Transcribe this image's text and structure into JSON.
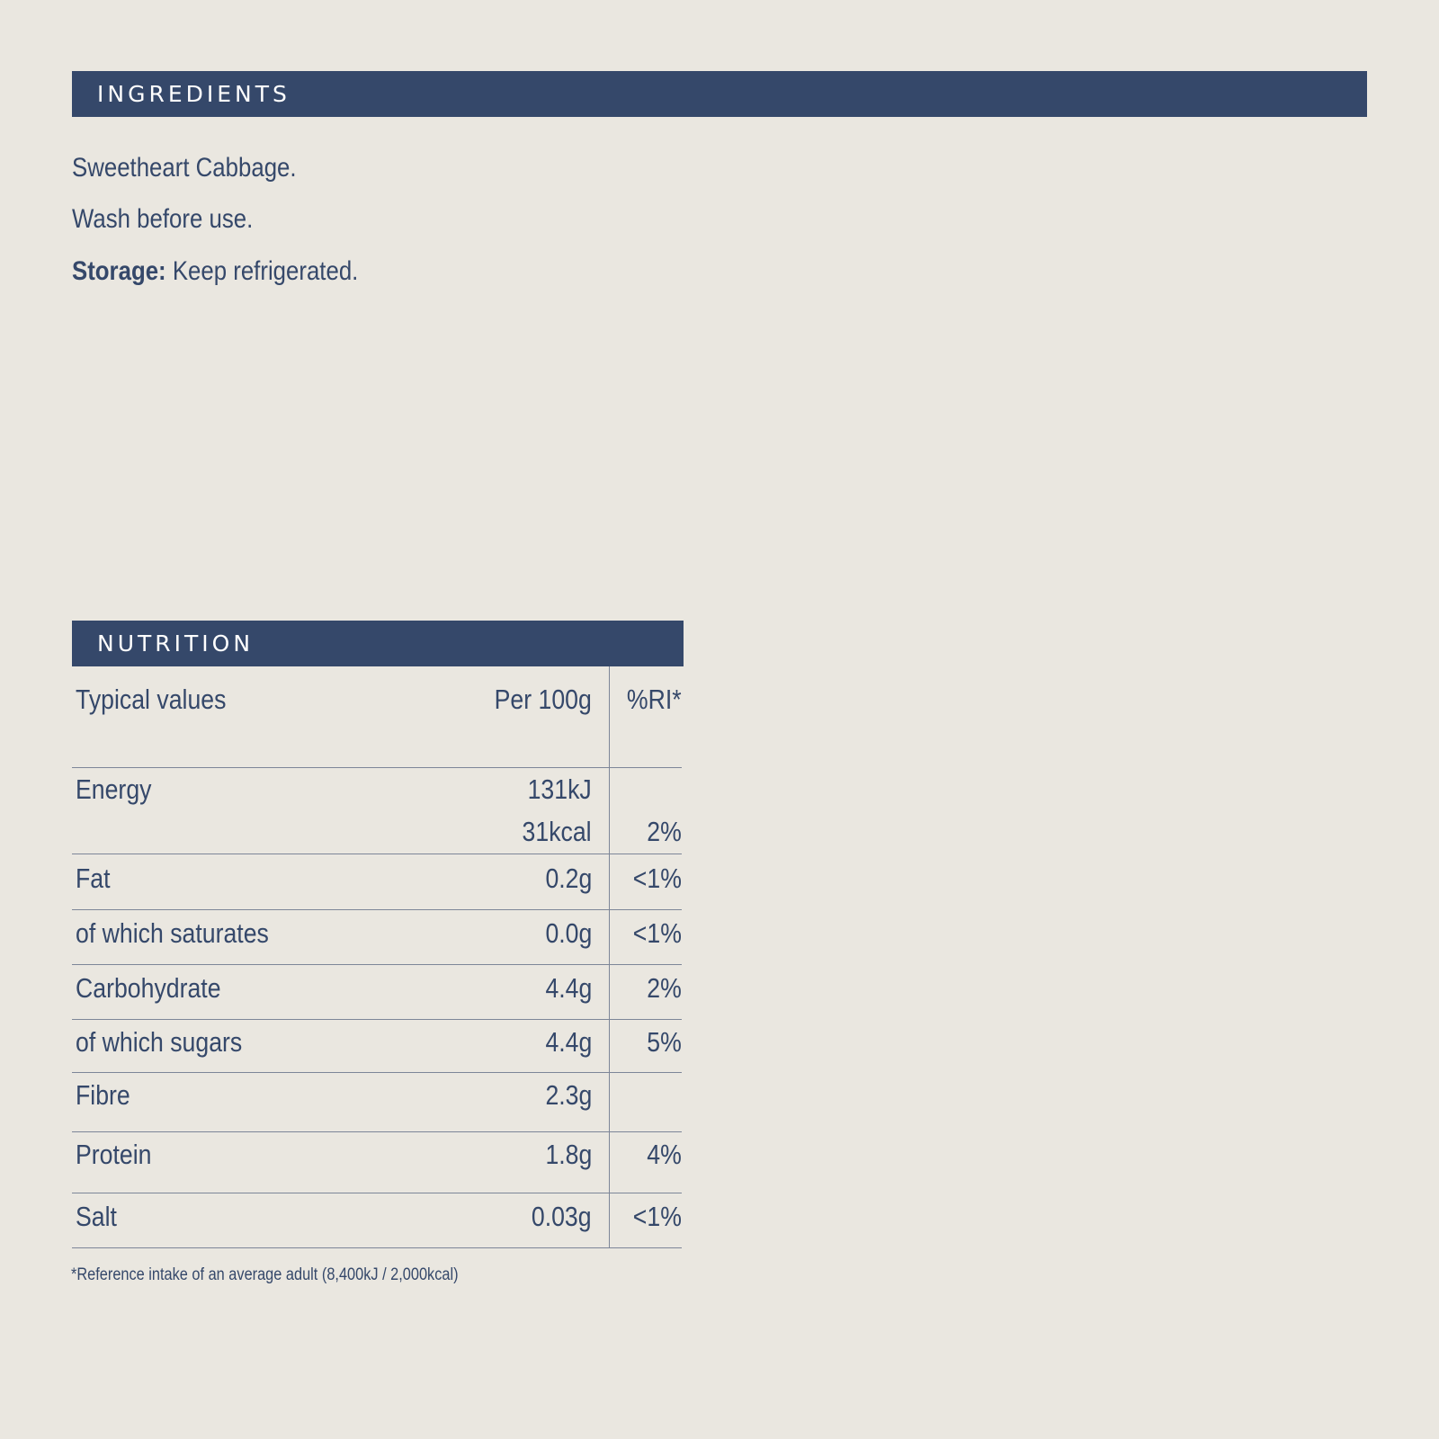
{
  "ingredients": {
    "heading": "INGREDIENTS",
    "line1": "Sweetheart Cabbage.",
    "line2": "Wash before use.",
    "storage_label": "Storage:",
    "storage_text": " Keep refrigerated."
  },
  "nutrition": {
    "heading": "NUTRITION",
    "header": {
      "name": "Typical values",
      "per": "Per 100g",
      "ri": "%RI*"
    },
    "energy": {
      "name": "Energy",
      "kj": "131kJ",
      "kcal": "31kcal",
      "ri": "2%"
    },
    "rows": [
      {
        "name": "Fat",
        "per": "0.2g",
        "ri": "<1%"
      },
      {
        "name": "of which saturates",
        "per": "0.0g",
        "ri": "<1%"
      },
      {
        "name": "Carbohydrate",
        "per": "4.4g",
        "ri": "2%"
      },
      {
        "name": "of which sugars",
        "per": "4.4g",
        "ri": "5%"
      },
      {
        "name": "Fibre",
        "per": "2.3g",
        "ri": ""
      },
      {
        "name": "Protein",
        "per": "1.8g",
        "ri": "4%"
      },
      {
        "name": "Salt",
        "per": "0.03g",
        "ri": "<1%"
      }
    ],
    "footnote": "*Reference intake of an average adult (8,400kJ / 2,000kcal)"
  }
}
